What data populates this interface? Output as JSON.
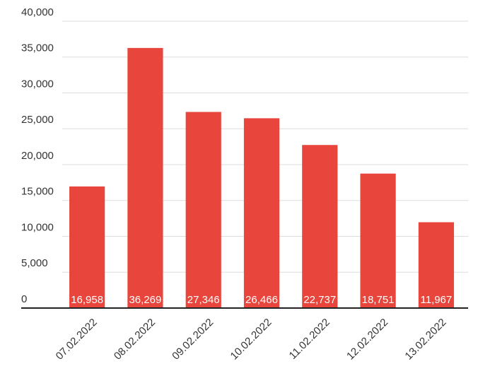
{
  "chart_data": {
    "type": "bar",
    "categories": [
      "07.02.2022",
      "08.02.2022",
      "09.02.2022",
      "10.02.2022",
      "11.02.2022",
      "12.02.2022",
      "13.02.2022"
    ],
    "values": [
      16958,
      36269,
      27346,
      26466,
      22737,
      18751,
      11967
    ],
    "value_labels": [
      "16,958",
      "36,269",
      "27,346",
      "26,466",
      "22,737",
      "18,751",
      "11,967"
    ],
    "color": "#e8453c",
    "ylim": [
      0,
      40000
    ],
    "yticks": [
      0,
      {
        "value": 5000,
        "label": "5,000"
      },
      {
        "value": 10000,
        "label": "10,000"
      },
      {
        "value": 15000,
        "label": "15,000"
      },
      {
        "value": 20000,
        "label": "20,000"
      },
      {
        "value": 25000,
        "label": "25,000"
      },
      {
        "value": 30000,
        "label": "30,000"
      },
      {
        "value": 35000,
        "label": "35,000"
      },
      {
        "value": 40000,
        "label": "40,000"
      }
    ],
    "grid": true
  }
}
